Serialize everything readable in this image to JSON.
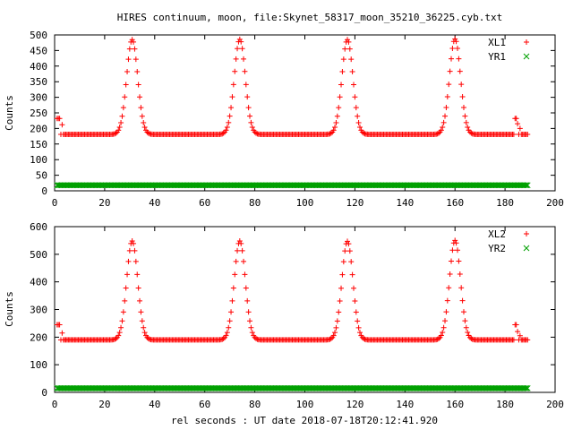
{
  "chart_data": [
    {
      "type": "scatter",
      "title": "HIRES continuum, moon, file:Skynet_58317_moon_35210_36225.cyb.txt",
      "xlabel": "",
      "ylabel": "Counts",
      "xlim": [
        0,
        200
      ],
      "ylim": [
        0,
        500
      ],
      "x_ticks": [
        0,
        20,
        40,
        60,
        80,
        100,
        120,
        140,
        160,
        180,
        200
      ],
      "y_ticks": [
        0,
        50,
        100,
        150,
        200,
        250,
        300,
        350,
        400,
        450,
        500
      ],
      "grid": false,
      "legend_position": "top-right",
      "x_range": [
        1,
        189
      ],
      "x_step": 0.5,
      "series": [
        {
          "name": "XL1",
          "marker": "plus",
          "color": "#ff0000",
          "baseline": 181,
          "peaks": [
            {
              "x": 31,
              "y": 485,
              "width": 2.2
            },
            {
              "x": 74,
              "y": 486,
              "width": 2.2
            },
            {
              "x": 117,
              "y": 485,
              "width": 2.2
            },
            {
              "x": 160,
              "y": 487,
              "width": 2.2
            }
          ],
          "edge_points": [
            [
              1,
              232
            ],
            [
              1.5,
              232
            ],
            [
              2,
              232
            ],
            [
              3,
              212
            ],
            [
              184,
              232
            ],
            [
              184.5,
              232
            ],
            [
              185,
              215
            ],
            [
              186,
              200
            ],
            [
              187,
              181
            ],
            [
              188,
              181
            ]
          ]
        },
        {
          "name": "YR1",
          "marker": "x",
          "color": "#00a000",
          "baseline": 18
        }
      ]
    },
    {
      "type": "scatter",
      "title": "",
      "xlabel": "rel seconds : UT date 2018-07-18T20:12:41.920",
      "ylabel": "Counts",
      "xlim": [
        0,
        200
      ],
      "ylim": [
        0,
        600
      ],
      "x_ticks": [
        0,
        20,
        40,
        60,
        80,
        100,
        120,
        140,
        160,
        180,
        200
      ],
      "y_ticks": [
        0,
        100,
        200,
        300,
        400,
        500,
        600
      ],
      "grid": false,
      "legend_position": "top-right",
      "x_range": [
        1,
        189
      ],
      "x_step": 0.5,
      "series": [
        {
          "name": "XL2",
          "marker": "plus",
          "color": "#ff0000",
          "baseline": 190,
          "peaks": [
            {
              "x": 31,
              "y": 548,
              "width": 2.2
            },
            {
              "x": 74,
              "y": 548,
              "width": 2.2
            },
            {
              "x": 117,
              "y": 547,
              "width": 2.2
            },
            {
              "x": 160,
              "y": 550,
              "width": 2.2
            }
          ],
          "edge_points": [
            [
              1,
              245
            ],
            [
              1.5,
              245
            ],
            [
              2,
              245
            ],
            [
              3,
              215
            ],
            [
              184,
              245
            ],
            [
              184.5,
              245
            ],
            [
              185,
              220
            ],
            [
              186,
              205
            ],
            [
              187,
              190
            ],
            [
              188,
              190
            ]
          ]
        },
        {
          "name": "YR2",
          "marker": "x",
          "color": "#00a000",
          "baseline": 15
        }
      ]
    }
  ]
}
